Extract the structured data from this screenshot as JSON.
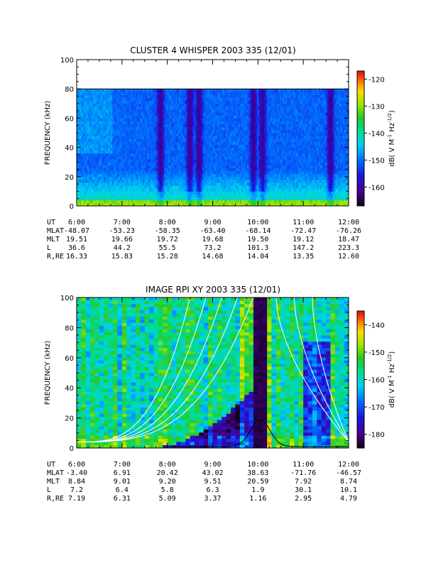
{
  "chart_data": [
    {
      "type": "heatmap",
      "title": "CLUSTER 4 WHISPER 2003 335 (12/01)",
      "ylabel": "FREQUENCY (kHz)",
      "ylim": [
        0,
        100
      ],
      "yticks": [
        "0",
        "20",
        "40",
        "60",
        "80",
        "100"
      ],
      "data_ceiling_khz": 80,
      "colorbar": {
        "label": "dB( V M⁻¹ Hz⁻¹ᐟ²)",
        "label_main": "dB( V M",
        "label_sup1": "-1",
        "label_mid": " Hz",
        "label_sup2": "-1/2",
        "label_end": ")",
        "range": [
          -167,
          -117
        ],
        "ticks": [
          "-120",
          "-130",
          "-140",
          "-150",
          "-160"
        ],
        "tick_values": [
          -120,
          -130,
          -140,
          -150,
          -160
        ]
      },
      "dark_lanes_ut_hours": [
        7.85,
        8.5,
        8.7,
        9.9,
        10.1,
        11.6
      ],
      "ephemeris": {
        "row_labels": [
          "UT",
          "MLAT",
          "MLT",
          "L",
          "R,RE"
        ],
        "columns": [
          [
            "6:00",
            "-48.07",
            "19.51",
            "36.6",
            "16.33"
          ],
          [
            "7:00",
            "-53.23",
            "19.66",
            "44.2",
            "15.83"
          ],
          [
            "8:00",
            "-58.35",
            "19.72",
            "55.5",
            "15.28"
          ],
          [
            "9:00",
            "-63.40",
            "19.68",
            "73.2",
            "14.68"
          ],
          [
            "10:00",
            "-68.14",
            "19.50",
            "101.3",
            "14.04"
          ],
          [
            "11:00",
            "-72.47",
            "19.12",
            "147.2",
            "13.35"
          ],
          [
            "12:00",
            "-76.26",
            "18.47",
            "223.3",
            "12.60"
          ]
        ]
      }
    },
    {
      "type": "heatmap",
      "title": "IMAGE RPI XY 2003 335 (12/01)",
      "ylabel": "FREQUENCY (kHz)",
      "ylim": [
        0,
        100
      ],
      "yticks": [
        "0",
        "20",
        "40",
        "60",
        "80",
        "100"
      ],
      "colorbar": {
        "label_main": "dB( V M",
        "label_sup1": "-1",
        "label_mid": " Hz",
        "label_sup2": "-1/2",
        "label_end": ")",
        "range": [
          -185,
          -135
        ],
        "ticks": [
          "-140",
          "-150",
          "-160",
          "-170",
          "-180"
        ],
        "tick_values": [
          -140,
          -150,
          -160,
          -170,
          -180
        ]
      },
      "plasmapause_ut_hours": [
        10.0,
        10.15
      ],
      "ephemeris": {
        "row_labels": [
          "UT",
          "MLAT",
          "MLT",
          "L",
          "R,RE"
        ],
        "columns": [
          [
            "6:00",
            "-3.40",
            "8.84",
            "7.2",
            "7.19"
          ],
          [
            "7:00",
            "6.91",
            "9.01",
            "6.4",
            "6.31"
          ],
          [
            "8:00",
            "20.42",
            "9.20",
            "5.8",
            "5.09"
          ],
          [
            "9:00",
            "43.02",
            "9.51",
            "6.3",
            "3.37"
          ],
          [
            "10:00",
            "38.63",
            "20.59",
            "1.9",
            "1.16"
          ],
          [
            "11:00",
            "-71.76",
            "7.92",
            "30.1",
            "2.95"
          ],
          [
            "12:00",
            "-46.57",
            "8.74",
            "10.1",
            "4.79"
          ]
        ]
      }
    }
  ]
}
